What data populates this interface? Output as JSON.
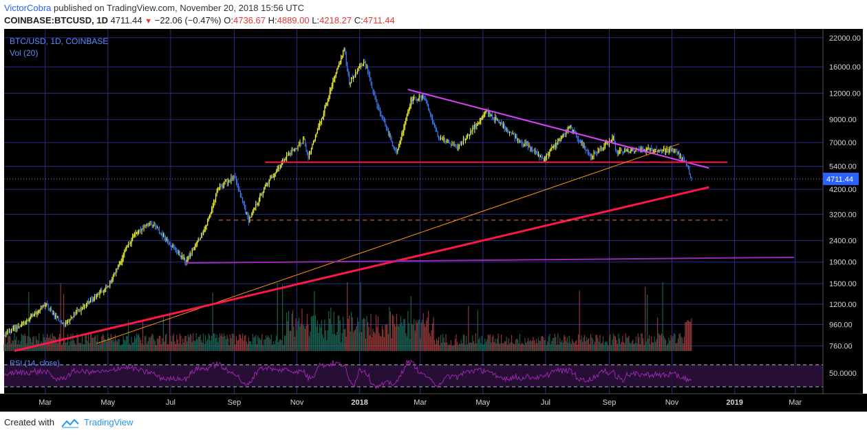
{
  "header": {
    "author": "VictorCobra",
    "published": "published on TradingView.com, November 20, 2018 15:56 UTC",
    "symbol": "COINBASE:BTCUSD, 1D",
    "last": "4711.44",
    "change_arrow": "▼",
    "change": "−22.06 (−0.47%)",
    "o_label": "O:",
    "o": "4736.67",
    "h_label": "H:",
    "h": "4889.00",
    "l_label": "L:",
    "l": "4218.27",
    "c_label": "C:",
    "c": "4711.44"
  },
  "footer": {
    "created_with": "Created with",
    "brand": "TradingView",
    "logo_icon": "tradingview-logo-icon"
  },
  "chart_data": {
    "type": "candlestick",
    "pane_title": "BTC/USD, 1D, COINBASE",
    "volume_label": "Vol (20)",
    "rsi_label": "RSI (14, close)",
    "rsi_tick": "50.0000",
    "price_badge": "4711.44",
    "y_scale": "log",
    "y_ticks": [
      "22000.00",
      "16000.00",
      "12000.00",
      "9000.00",
      "7000.00",
      "5400.00",
      "4200.00",
      "3200.00",
      "2400.00",
      "1900.00",
      "1500.00",
      "1200.00",
      "960.00",
      "760.00"
    ],
    "y_tick_values": [
      22000,
      16000,
      12000,
      9000,
      7000,
      5400,
      4200,
      3200,
      2400,
      1900,
      1500,
      1200,
      960,
      760
    ],
    "x_ticks": [
      {
        "label": "Mar",
        "date": "2017-03-01",
        "bold": false
      },
      {
        "label": "May",
        "date": "2017-05-01",
        "bold": false
      },
      {
        "label": "Jul",
        "date": "2017-07-01",
        "bold": false
      },
      {
        "label": "Sep",
        "date": "2017-09-01",
        "bold": false
      },
      {
        "label": "Nov",
        "date": "2017-11-01",
        "bold": false
      },
      {
        "label": "2018",
        "date": "2018-01-01",
        "bold": true
      },
      {
        "label": "Mar",
        "date": "2018-03-01",
        "bold": false
      },
      {
        "label": "May",
        "date": "2018-05-01",
        "bold": false
      },
      {
        "label": "Jul",
        "date": "2018-07-01",
        "bold": false
      },
      {
        "label": "Sep",
        "date": "2018-09-01",
        "bold": false
      },
      {
        "label": "Nov",
        "date": "2018-11-01",
        "bold": false
      },
      {
        "label": "2019",
        "date": "2019-01-01",
        "bold": true
      },
      {
        "label": "Mar",
        "date": "2019-03-01",
        "bold": false
      }
    ],
    "x_range": [
      "2017-01-20",
      "2019-03-28"
    ],
    "y_range": [
      730,
      23500
    ],
    "price_path": [
      [
        "2017-01-20",
        850
      ],
      [
        "2017-02-10",
        990
      ],
      [
        "2017-03-01",
        1200
      ],
      [
        "2017-03-18",
        960
      ],
      [
        "2017-04-10",
        1200
      ],
      [
        "2017-05-01",
        1450
      ],
      [
        "2017-05-25",
        2500
      ],
      [
        "2017-06-11",
        2950
      ],
      [
        "2017-06-25",
        2500
      ],
      [
        "2017-07-16",
        1900
      ],
      [
        "2017-08-05",
        2850
      ],
      [
        "2017-08-17",
        4300
      ],
      [
        "2017-09-01",
        4800
      ],
      [
        "2017-09-15",
        3000
      ],
      [
        "2017-10-01",
        4300
      ],
      [
        "2017-10-20",
        5900
      ],
      [
        "2017-11-08",
        7200
      ],
      [
        "2017-11-12",
        5900
      ],
      [
        "2017-11-29",
        10500
      ],
      [
        "2017-12-17",
        19500
      ],
      [
        "2017-12-22",
        13500
      ],
      [
        "2018-01-06",
        17000
      ],
      [
        "2018-01-17",
        11000
      ],
      [
        "2018-02-06",
        6200
      ],
      [
        "2018-02-20",
        11200
      ],
      [
        "2018-03-05",
        11500
      ],
      [
        "2018-03-18",
        7500
      ],
      [
        "2018-04-06",
        6600
      ],
      [
        "2018-05-05",
        9800
      ],
      [
        "2018-06-01",
        7500
      ],
      [
        "2018-06-29",
        5850
      ],
      [
        "2018-07-25",
        8300
      ],
      [
        "2018-08-14",
        6000
      ],
      [
        "2018-09-05",
        7300
      ],
      [
        "2018-09-08",
        6300
      ],
      [
        "2018-10-10",
        6500
      ],
      [
        "2018-11-05",
        6400
      ],
      [
        "2018-11-14",
        5600
      ],
      [
        "2018-11-20",
        4711
      ]
    ],
    "lines": [
      {
        "name": "descending-resistance",
        "color": "#e040fb",
        "width": 2,
        "from": [
          "2018-02-17",
          12500
        ],
        "to": [
          "2018-12-07",
          5300
        ]
      },
      {
        "name": "horizontal-support-5700",
        "color": "#ff1744",
        "width": 2,
        "from": [
          "2017-10-01",
          5650
        ],
        "to": [
          "2018-12-25",
          5650
        ]
      },
      {
        "name": "thin-trendline",
        "color": "#ff9800",
        "width": 1,
        "from": [
          "2017-04-20",
          780
        ],
        "to": [
          "2018-11-08",
          6900
        ]
      },
      {
        "name": "major-trendline",
        "color": "#ff1744",
        "width": 3,
        "from": [
          "2017-01-30",
          720
        ],
        "to": [
          "2018-12-07",
          4300
        ]
      },
      {
        "name": "dashed-support-3000",
        "color": "#ff7043",
        "width": 1,
        "dash": true,
        "from": [
          "2017-08-17",
          3000
        ],
        "to": [
          "2018-12-25",
          3000
        ]
      },
      {
        "name": "long-horizontal-1900",
        "color": "#9c27b0",
        "width": 2,
        "from": [
          "2017-07-15",
          1880
        ],
        "to": [
          "2019-02-28",
          2000
        ]
      }
    ],
    "rsi_levels": [
      70,
      30
    ],
    "rsi_range": [
      20,
      90
    ]
  }
}
